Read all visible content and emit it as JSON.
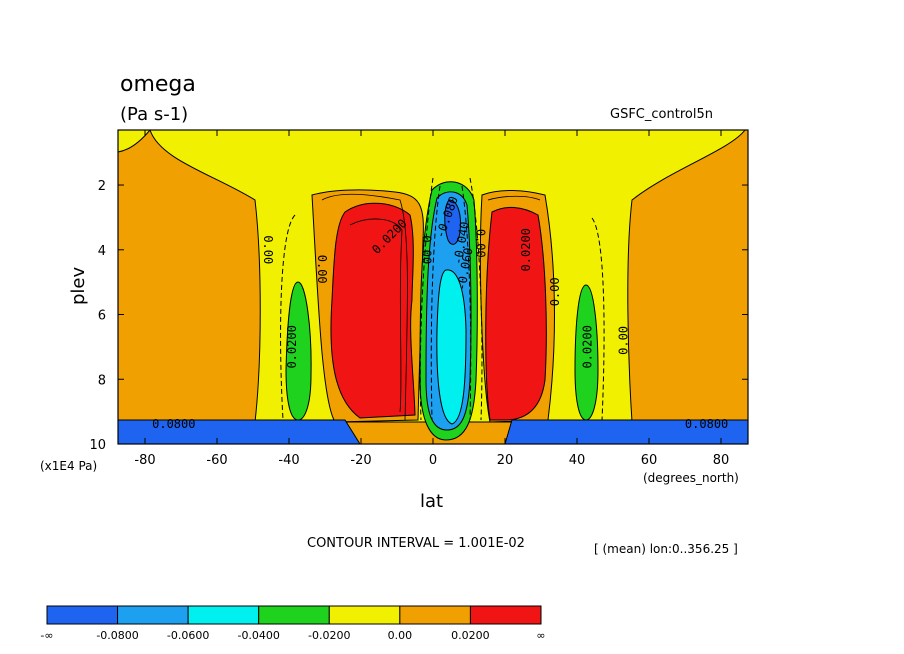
{
  "chart_data": {
    "type": "contour",
    "title": "omega",
    "units": "(Pa s-1)",
    "experiment": "GSFC_control5n",
    "xlabel": "lat",
    "x_units": "(degrees_north)",
    "ylabel": "plev",
    "y_units": "(x1E4 Pa)",
    "xlim": [
      -87.5,
      87.5
    ],
    "ylim": [
      10,
      0.3
    ],
    "x_ticks": [
      -80,
      -60,
      -40,
      -20,
      0,
      20,
      40,
      60,
      80
    ],
    "x_tick_labels": [
      "-80",
      "-60",
      "-40",
      "-20",
      "0",
      "20",
      "40",
      "60",
      "80"
    ],
    "y_ticks": [
      2,
      4,
      6,
      8,
      10
    ],
    "y_tick_labels": [
      "2",
      "4",
      "6",
      "8",
      "10"
    ],
    "contour_interval_text": "CONTOUR INTERVAL = 1.001E-02",
    "mean_note": "[ (mean) lon:0..356.25 ]",
    "colorbar": {
      "levels": [
        "-∞",
        "-0.0800",
        "-0.0600",
        "-0.0400",
        "-0.0200",
        "0.00",
        "0.0200",
        "∞"
      ],
      "colors": [
        "#1e64f0",
        "#1ea0f0",
        "#00f0f0",
        "#1ed21e",
        "#f0f000",
        "#f0a000",
        "#f01414"
      ]
    },
    "contour_labels": [
      {
        "text": "0.00",
        "lat": -46,
        "plev": 4.0,
        "rot": 90
      },
      {
        "text": "0.00",
        "lat": -31,
        "plev": 4.6,
        "rot": 90
      },
      {
        "text": "0.0200",
        "lat": -39,
        "plev": 7.0,
        "rot": -90
      },
      {
        "text": "0.0200",
        "lat": -12,
        "plev": 3.6,
        "rot": -45
      },
      {
        "text": "0.00",
        "lat": -2,
        "plev": 4.0,
        "rot": 90
      },
      {
        "text": "0.00",
        "lat": 13,
        "plev": 3.8,
        "rot": 90
      },
      {
        "text": "-0.080",
        "lat": 4,
        "plev": 3.0,
        "rot": -70
      },
      {
        "text": "-0.040",
        "lat": 8,
        "plev": 3.8,
        "rot": -80
      },
      {
        "text": "-0.060",
        "lat": 9,
        "plev": 4.6,
        "rot": -80
      },
      {
        "text": "0.0200",
        "lat": 26,
        "plev": 4.0,
        "rot": -90
      },
      {
        "text": "0.00",
        "lat": 34,
        "plev": 5.3,
        "rot": -90
      },
      {
        "text": "0.0200",
        "lat": 43,
        "plev": 7.0,
        "rot": -90
      },
      {
        "text": "0.00",
        "lat": 53,
        "plev": 6.8,
        "rot": -90
      },
      {
        "text": "0.0800",
        "lat": -72,
        "plev": 9.4,
        "rot": 0
      },
      {
        "text": "0.0800",
        "lat": 76,
        "plev": 9.4,
        "rot": 0
      }
    ]
  }
}
